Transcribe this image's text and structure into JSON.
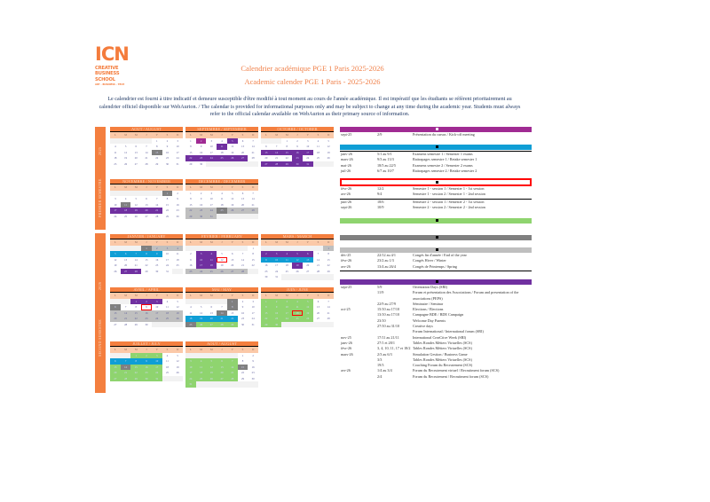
{
  "logo": {
    "big": "ICN",
    "line1": "CREATIVE",
    "line2": "BUSINESS",
    "line3": "SCHOOL",
    "tag": "ART · BUSINESS · TECH"
  },
  "title_fr": "Calendrier académique PGE 1 Paris 2025-2026",
  "title_en": "Academic calender PGE 1 Paris - 2025-2026",
  "intro": "Le calendrier est fourni à titre indicatif et demeure susceptible d'être modifié à tout moment au cours de l'année académique. Il est impératif que les étudiants se réfèrent prioritairement au calendrier officiel disponible sur WebAurion. / The calendar is provided for informational purposes only and may be subject to change at any time during the academic year. Students must always refer to the official calendar available on WebAurion as their primary source of information.",
  "sidebar": [
    {
      "year": "2025",
      "label": "PREMIER SEMESTRE"
    },
    {
      "year": "2026",
      "label": "SECOND SEMESTRE"
    }
  ],
  "weekdays": [
    "L",
    "M",
    "M",
    "J",
    "V",
    "S",
    "D"
  ],
  "colors": {
    "kickoff": "#a02b93",
    "event": "#7030a0",
    "exam": "#0f9ed5",
    "holiday": "#bfbfbf",
    "dayoff": "#808080",
    "company": "#8fd46f",
    "off": "#f2f2f2",
    "jury": "#ff0000",
    "accent": "#f47f3f"
  },
  "months": [
    {
      "name": "AOUT / AUGUST",
      "weeks": [
        [
          0,
          0,
          0,
          0,
          1,
          2,
          3
        ],
        [
          4,
          5,
          6,
          7,
          8,
          9,
          10
        ],
        [
          11,
          12,
          13,
          14,
          15,
          16,
          17
        ],
        [
          18,
          19,
          20,
          21,
          22,
          23,
          24
        ],
        [
          25,
          26,
          27,
          28,
          29,
          30,
          31
        ]
      ],
      "marks": {
        "dayoff": [
          15
        ]
      }
    },
    {
      "name": "SEPTEMBRE / SEPTEMBER",
      "weeks": [
        [
          1,
          2,
          3,
          4,
          5,
          6,
          7
        ],
        [
          8,
          9,
          10,
          11,
          12,
          13,
          14
        ],
        [
          15,
          16,
          17,
          18,
          19,
          20,
          21
        ],
        [
          22,
          23,
          24,
          25,
          26,
          27,
          28
        ],
        [
          29,
          30,
          0,
          0,
          0,
          0,
          0
        ]
      ],
      "marks": {
        "kickoff": [
          2
        ],
        "event": [
          5,
          11,
          22,
          23,
          24,
          25,
          26,
          27
        ]
      }
    },
    {
      "name": "OCTOBRE / OCTOBER",
      "weeks": [
        [
          0,
          0,
          1,
          2,
          3,
          4,
          5
        ],
        [
          6,
          7,
          8,
          9,
          10,
          11,
          12
        ],
        [
          13,
          14,
          15,
          16,
          17,
          18,
          19
        ],
        [
          20,
          21,
          22,
          23,
          24,
          25,
          26
        ],
        [
          27,
          28,
          29,
          30,
          31,
          0,
          0
        ]
      ],
      "marks": {
        "event": [
          13,
          14,
          15,
          16,
          17,
          23,
          27,
          28,
          29,
          30,
          31
        ]
      }
    },
    {
      "name": "NOVEMBRE / NOVEMBER",
      "weeks": [
        [
          0,
          0,
          0,
          0,
          0,
          1,
          2
        ],
        [
          3,
          4,
          5,
          6,
          7,
          8,
          9
        ],
        [
          10,
          11,
          12,
          13,
          14,
          15,
          16
        ],
        [
          17,
          18,
          19,
          20,
          21,
          22,
          23
        ],
        [
          24,
          25,
          26,
          27,
          28,
          29,
          30
        ]
      ],
      "marks": {
        "dayoff": [
          1,
          11
        ],
        "event": [
          17,
          18,
          19,
          20,
          21
        ]
      }
    },
    {
      "name": "DECEMBRE / DECEMBER",
      "weeks": [
        [
          1,
          2,
          3,
          4,
          5,
          6,
          7
        ],
        [
          8,
          9,
          10,
          11,
          12,
          13,
          14
        ],
        [
          15,
          16,
          17,
          18,
          19,
          20,
          21
        ],
        [
          22,
          23,
          24,
          25,
          26,
          27,
          28
        ],
        [
          29,
          30,
          31,
          0,
          0,
          0,
          0
        ]
      ],
      "marks": {
        "holiday": [
          22,
          23,
          24,
          26,
          27,
          28,
          29,
          30,
          31
        ],
        "dayoff": [
          25
        ]
      }
    },
    {
      "name": "JANVIER / JANUARY",
      "weeks": [
        [
          0,
          0,
          0,
          1,
          2,
          3,
          4
        ],
        [
          5,
          6,
          7,
          8,
          9,
          10,
          11
        ],
        [
          12,
          13,
          14,
          15,
          16,
          17,
          18
        ],
        [
          19,
          20,
          21,
          22,
          23,
          24,
          25
        ],
        [
          26,
          27,
          28,
          29,
          30,
          31,
          0
        ]
      ],
      "marks": {
        "dayoff": [
          1
        ],
        "holiday": [
          2,
          3,
          4
        ],
        "exam": [
          5,
          6,
          7,
          8,
          9
        ],
        "event": [
          27,
          28
        ]
      }
    },
    {
      "name": "FEVRIER / FEBRUARY",
      "weeks": [
        [
          0,
          0,
          0,
          0,
          0,
          0,
          1
        ],
        [
          2,
          3,
          4,
          5,
          6,
          7,
          8
        ],
        [
          9,
          10,
          11,
          12,
          13,
          14,
          15
        ],
        [
          16,
          17,
          18,
          19,
          20,
          21,
          22
        ],
        [
          23,
          24,
          25,
          26,
          27,
          28,
          0
        ]
      ],
      "marks": {
        "event": [
          3,
          4,
          10,
          11,
          17,
          18
        ],
        "holiday": [
          23,
          24,
          25,
          26,
          27,
          28
        ],
        "jury": [
          12
        ]
      }
    },
    {
      "name": "MARS / MARCH",
      "weeks": [
        [
          0,
          0,
          0,
          0,
          0,
          0,
          1
        ],
        [
          2,
          3,
          4,
          5,
          6,
          7,
          8
        ],
        [
          9,
          10,
          11,
          12,
          13,
          14,
          15
        ],
        [
          16,
          17,
          18,
          19,
          20,
          21,
          22
        ],
        [
          23,
          24,
          25,
          26,
          27,
          28,
          29
        ],
        [
          30,
          31,
          0,
          0,
          0,
          0,
          0
        ]
      ],
      "marks": {
        "holiday": [
          1
        ],
        "event": [
          2,
          3,
          4,
          5,
          6,
          19
        ],
        "exam": [
          9,
          10,
          11,
          12,
          13
        ]
      }
    },
    {
      "name": "AVRIL / APRIL",
      "weeks": [
        [
          0,
          0,
          1,
          2,
          3,
          4,
          5
        ],
        [
          6,
          7,
          8,
          9,
          10,
          11,
          12
        ],
        [
          13,
          14,
          15,
          16,
          17,
          18,
          19
        ],
        [
          20,
          21,
          22,
          23,
          24,
          25,
          26
        ],
        [
          27,
          28,
          29,
          30,
          0,
          0,
          0
        ]
      ],
      "marks": {
        "event": [
          1,
          2,
          3
        ],
        "dayoff": [
          6
        ],
        "holiday": [
          13,
          14,
          15,
          16,
          17,
          18,
          19,
          20,
          21,
          22,
          23,
          24,
          25,
          26
        ],
        "jury": [
          9
        ]
      }
    },
    {
      "name": "MAI / MAY",
      "weeks": [
        [
          0,
          0,
          0,
          0,
          1,
          2,
          3
        ],
        [
          4,
          5,
          6,
          7,
          8,
          9,
          10
        ],
        [
          11,
          12,
          13,
          14,
          15,
          16,
          17
        ],
        [
          18,
          19,
          20,
          21,
          22,
          23,
          24
        ],
        [
          25,
          26,
          27,
          28,
          29,
          30,
          31
        ]
      ],
      "marks": {
        "dayoff": [
          1,
          8,
          14,
          25
        ],
        "exam": [
          18,
          19,
          20,
          21,
          22
        ],
        "company": [
          26,
          27,
          28,
          29
        ]
      }
    },
    {
      "name": "JUIN / JUNE",
      "weeks": [
        [
          1,
          2,
          3,
          4,
          5,
          6,
          7
        ],
        [
          8,
          9,
          10,
          11,
          12,
          13,
          14
        ],
        [
          15,
          16,
          17,
          18,
          19,
          20,
          21
        ],
        [
          22,
          23,
          24,
          25,
          26,
          27,
          28
        ],
        [
          29,
          30,
          0,
          0,
          0,
          0,
          0
        ]
      ],
      "marks": {
        "company": [
          1,
          2,
          3,
          4,
          5,
          8,
          9,
          10,
          11,
          12,
          15,
          16,
          17,
          18,
          19,
          22,
          23,
          24,
          25,
          26,
          29,
          30
        ],
        "jury": [
          18
        ]
      }
    },
    {
      "name": "JUILLET / JULY",
      "weeks": [
        [
          0,
          0,
          1,
          2,
          3,
          4,
          5
        ],
        [
          6,
          7,
          8,
          9,
          10,
          11,
          12
        ],
        [
          13,
          14,
          15,
          16,
          17,
          18,
          19
        ],
        [
          20,
          21,
          22,
          23,
          24,
          25,
          26
        ],
        [
          27,
          28,
          29,
          30,
          31,
          0,
          0
        ]
      ],
      "marks": {
        "company": [
          1,
          2,
          3,
          13,
          15,
          16,
          17,
          20,
          21,
          22,
          23,
          24,
          27,
          28,
          29,
          30,
          31
        ],
        "exam": [
          6,
          7,
          8,
          9,
          10
        ],
        "dayoff": [
          14
        ]
      }
    },
    {
      "name": "AOUT / AUGUST",
      "weeks": [
        [
          0,
          0,
          0,
          0,
          0,
          1,
          2
        ],
        [
          3,
          4,
          5,
          6,
          7,
          8,
          9
        ],
        [
          10,
          11,
          12,
          13,
          14,
          15,
          16
        ],
        [
          17,
          18,
          19,
          20,
          21,
          22,
          23
        ],
        [
          24,
          25,
          26,
          27,
          28,
          29,
          30
        ],
        [
          31,
          0,
          0,
          0,
          0,
          0,
          0
        ]
      ],
      "marks": {
        "company": [
          3,
          4,
          5,
          6,
          7,
          10,
          11,
          12,
          13,
          14,
          17,
          18,
          19,
          20,
          21,
          24,
          25,
          26,
          27,
          28,
          31
        ],
        "dayoff": [
          15
        ]
      }
    }
  ],
  "sections": [
    {
      "style": "kickoff",
      "icon": "presentation-icon",
      "rows": [
        [
          "sept-25",
          "2/9",
          "Présentation du cursus / Kick-off meeting"
        ]
      ]
    },
    {
      "style": "exam",
      "icon": "exam-icon",
      "rule": true,
      "rows": [
        [
          "janv-26",
          "5/1 au 9/1",
          "Examens semestre 1 / Semester 1 exams"
        ],
        [
          "mars-26",
          "9/3 au 13/3",
          "Rattrapages semestre 1 / Retake semester 1"
        ],
        [
          "mai-26",
          "18/5 au 22/5",
          "Examens semestre 2 / Semester 2 exams"
        ],
        [
          "juil-26",
          "6/7 au 10/7",
          "Rattrapages semestre 2 / Retake semester 2"
        ]
      ]
    },
    {
      "style": "jury",
      "icon": "jury-icon",
      "rows": [
        [
          "févr-26",
          "12/2",
          "Semestre 1 - session 1 / Semester 1 - 1st session"
        ],
        [
          "avr-26",
          "9/4",
          "Semestre 1 - session 2 / Semester 1 - 2nd session"
        ],
        [
          "juin-26",
          "18/6",
          "Semestre 2 - session 1 / Semester 2 - 1st session"
        ],
        [
          "sept-26",
          "10/9",
          "Semestre 2 - session 2 / Semester 2 - 2nd session"
        ]
      ],
      "rule_after": 1
    },
    {
      "style": "company",
      "icon": "company-icon",
      "rows": []
    },
    {
      "style": "dayoff",
      "icon": "holiday-icon",
      "rows": []
    },
    {
      "style": "holiday",
      "icon": "vacation-icon",
      "rows": [
        [
          "déc-25",
          "22/12 au 4/1",
          "Congés fin d'année / End of the year"
        ],
        [
          "févr-26",
          "23/2 au 1/3",
          "Congés Hiver / Winter"
        ],
        [
          "avr-26",
          "13/4 au 26/4",
          "Congés de Printemps / Spring"
        ]
      ],
      "rule_end": true
    },
    {
      "style": "event",
      "icon": "event-icon",
      "rows": [
        [
          "sept-25",
          "5/9",
          "Orientation Days (SRI)"
        ],
        [
          "",
          "11/9",
          "Forum et présentation des Associations / Forum and presentation of the associations (PEPS)"
        ],
        [
          "",
          "22/9 au 27/9",
          "Séminaire / Seminar"
        ],
        [
          "oct-25",
          "15/10 au 17/10",
          "Elections / Elections"
        ],
        [
          "",
          "13/10 au 17/10",
          "Campagne BDE / BDE Campaign"
        ],
        [
          "",
          "23/10",
          "Welcome Day Parents"
        ],
        [
          "",
          "27/10 au 31/10",
          "Creative days"
        ],
        [
          "",
          "",
          ""
        ],
        [
          "",
          "",
          "Forum International / International forum (SRI)"
        ],
        [
          "nov-25",
          "17/11 au 21/11",
          "International CreaCtive Week (SRI)"
        ],
        [
          "janv-26",
          "27/1 et 28/1",
          "Tables Rondes Métiers Virtuelles (SCS)"
        ],
        [
          "févr-26",
          "3, 4, 10, 11, 17 et 18/2",
          "Tables Rondes Métiers Virtuelles (SCS)"
        ],
        [
          "mars-26",
          "2/3 au 6/3",
          "Simulation Gestion / Business Game"
        ],
        [
          "",
          "3/3",
          "Tables Rondes Métiers Virtuelles (SCS)"
        ],
        [
          "",
          "19/3",
          "Coaching Forum du Recrutement (SCS)"
        ],
        [
          "avr-26",
          "1/4 au 3/4",
          "Forum du Recrutement virtuel / Recruitment forum (SCS)"
        ],
        [
          "",
          "2/4",
          "Forum du Recrutement / Recruitment forum (SCS)"
        ]
      ]
    }
  ]
}
